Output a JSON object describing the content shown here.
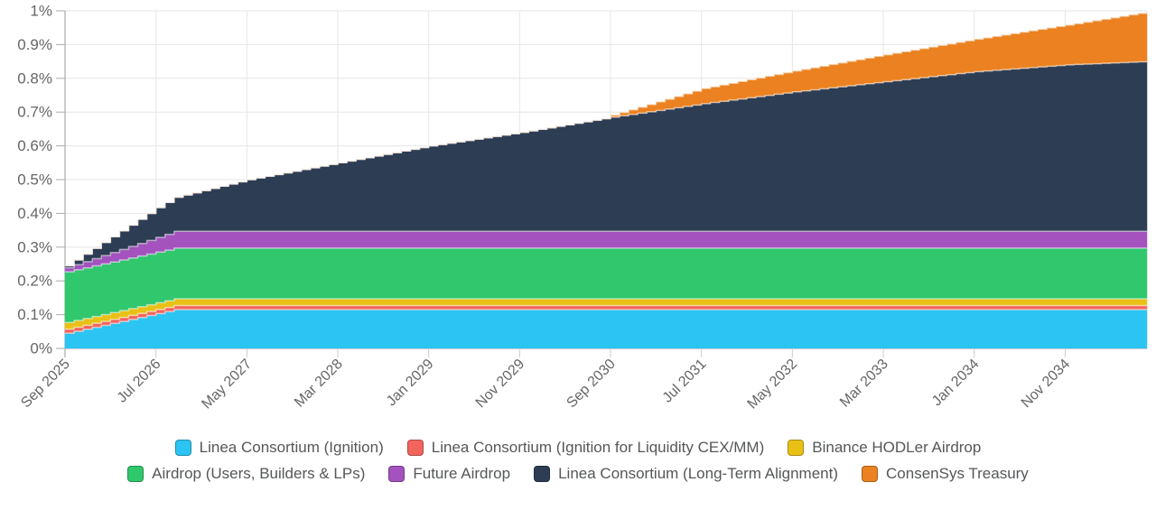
{
  "chart_data": {
    "type": "area",
    "stacked": true,
    "title": "",
    "xlabel": "",
    "ylabel": "",
    "unit": "% of total supply",
    "ylim": [
      0,
      1
    ],
    "grid": true,
    "legend_position": "bottom",
    "total_months": 119,
    "x_start_label": "Sep 2025",
    "x_ticks": [
      {
        "m": 0,
        "label": "Sep 2025"
      },
      {
        "m": 10,
        "label": "Jul 2026"
      },
      {
        "m": 20,
        "label": "May 2027"
      },
      {
        "m": 30,
        "label": "Mar 2028"
      },
      {
        "m": 40,
        "label": "Jan 2029"
      },
      {
        "m": 50,
        "label": "Nov 2029"
      },
      {
        "m": 60,
        "label": "Sep 2030"
      },
      {
        "m": 70,
        "label": "Jul 2031"
      },
      {
        "m": 80,
        "label": "May 2032"
      },
      {
        "m": 90,
        "label": "Mar 2033"
      },
      {
        "m": 100,
        "label": "Jan 2034"
      },
      {
        "m": 110,
        "label": "Nov 2034"
      }
    ],
    "y_ticks": [
      {
        "v": 0,
        "label": "0%"
      },
      {
        "v": 0.1,
        "label": "0.1%"
      },
      {
        "v": 0.2,
        "label": "0.2%"
      },
      {
        "v": 0.3,
        "label": "0.3%"
      },
      {
        "v": 0.4,
        "label": "0.4%"
      },
      {
        "v": 0.5,
        "label": "0.5%"
      },
      {
        "v": 0.6,
        "label": "0.6%"
      },
      {
        "v": 0.7,
        "label": "0.7%"
      },
      {
        "v": 0.8,
        "label": "0.8%"
      },
      {
        "v": 0.9,
        "label": "0.9%"
      },
      {
        "v": 1,
        "label": "1%"
      }
    ],
    "series": [
      {
        "key": "ignition",
        "name": "Linea Consortium (Ignition)",
        "color": "#2CC4F2",
        "points": [
          [
            0,
            0.045
          ],
          [
            12,
            0.115
          ],
          [
            119,
            0.115
          ]
        ]
      },
      {
        "key": "ignition-liquidity",
        "name": "Linea Consortium (Ignition for Liquidity CEX/MM)",
        "color": "#F2655C",
        "points": [
          [
            0,
            0.012
          ],
          [
            119,
            0.012
          ]
        ]
      },
      {
        "key": "binance-hodler",
        "name": "Binance HODLer Airdrop",
        "color": "#E9C016",
        "points": [
          [
            0,
            0.02
          ],
          [
            119,
            0.02
          ]
        ]
      },
      {
        "key": "airdrop-users",
        "name": "Airdrop (Users, Builders & LPs)",
        "color": "#30C76D",
        "points": [
          [
            0,
            0.15
          ],
          [
            119,
            0.15
          ]
        ]
      },
      {
        "key": "future-airdrop",
        "name": "Future Airdrop",
        "color": "#A352BE",
        "points": [
          [
            0,
            0.012
          ],
          [
            12,
            0.05
          ],
          [
            119,
            0.05
          ]
        ]
      },
      {
        "key": "long-term",
        "name": "Linea Consortium (Long-Term Alignment)",
        "color": "#2D3D54",
        "points": [
          [
            0,
            0.006
          ],
          [
            10,
            0.088
          ],
          [
            20,
            0.153
          ],
          [
            30,
            0.203
          ],
          [
            40,
            0.253
          ],
          [
            50,
            0.293
          ],
          [
            60,
            0.338
          ],
          [
            70,
            0.378
          ],
          [
            80,
            0.413
          ],
          [
            90,
            0.443
          ],
          [
            100,
            0.473
          ],
          [
            110,
            0.493
          ],
          [
            119,
            0.503
          ]
        ]
      },
      {
        "key": "consensys-treasury",
        "name": "ConsenSys Treasury",
        "color": "#EB8120",
        "points": [
          [
            0,
            0
          ],
          [
            59,
            0
          ],
          [
            60,
            0.006
          ],
          [
            70,
            0.045
          ],
          [
            80,
            0.062
          ],
          [
            90,
            0.08
          ],
          [
            100,
            0.096
          ],
          [
            110,
            0.118
          ],
          [
            119,
            0.147
          ]
        ]
      }
    ]
  },
  "legend": {
    "rows": [
      [
        0,
        1,
        2
      ],
      [
        3,
        4,
        5,
        6
      ]
    ]
  },
  "style": {
    "axis_line_color": "#999999",
    "bottom_line_color": "#cccccc",
    "gridline_color": "#e6e6e6",
    "tick_color": "#aaaaaa",
    "label_color": "#666666"
  }
}
